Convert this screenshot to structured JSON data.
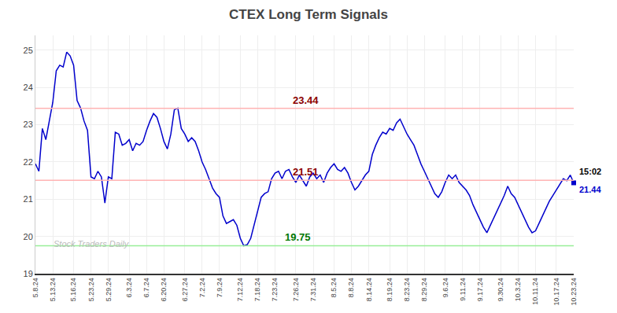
{
  "chart_data": {
    "type": "line",
    "title": "CTEX Long Term Signals",
    "color": "#0000cc",
    "ylim": [
      19.0,
      25.4
    ],
    "yticks": [
      19,
      20,
      21,
      22,
      23,
      24,
      25
    ],
    "grid": true,
    "categories": [
      "5.8.24",
      null,
      null,
      null,
      null,
      "5.13.24",
      null,
      null,
      null,
      null,
      null,
      "5.16.24",
      null,
      null,
      null,
      null,
      "5.23.24",
      null,
      null,
      null,
      null,
      "5.29.24",
      null,
      null,
      null,
      null,
      null,
      "6.3.24",
      null,
      null,
      null,
      null,
      "6.7.24",
      null,
      null,
      null,
      null,
      "6.20.24",
      null,
      null,
      null,
      null,
      null,
      "6.27.24",
      null,
      null,
      null,
      null,
      "7.2.24",
      null,
      null,
      null,
      null,
      "7.9.24",
      null,
      null,
      null,
      null,
      null,
      "7.12.24",
      null,
      null,
      null,
      null,
      "7.18.24",
      null,
      null,
      null,
      null,
      "7.23.24",
      null,
      null,
      null,
      null,
      null,
      "7.26.24",
      null,
      null,
      null,
      null,
      "7.31.24",
      null,
      null,
      null,
      null,
      null,
      "8.5.24",
      null,
      null,
      null,
      null,
      "8.8.24",
      null,
      null,
      null,
      null,
      "8.14.24",
      null,
      null,
      null,
      null,
      null,
      "8.19.24",
      null,
      null,
      null,
      null,
      "8.23.24",
      null,
      null,
      null,
      null,
      "8.29.24",
      null,
      null,
      null,
      null,
      null,
      "9.6.24",
      null,
      null,
      null,
      null,
      "9.11.24",
      null,
      null,
      null,
      null,
      "9.17.24",
      null,
      null,
      null,
      null,
      null,
      "9.30.24",
      null,
      null,
      null,
      null,
      "10.3.24",
      null,
      null,
      null,
      null,
      "10.11.24",
      null,
      null,
      null,
      null,
      null,
      "10.17.24",
      null,
      null,
      null,
      null,
      "10.23.24"
    ],
    "values": [
      21.95,
      21.75,
      22.9,
      22.6,
      23.1,
      23.6,
      24.45,
      24.6,
      24.55,
      24.95,
      24.85,
      24.6,
      23.65,
      23.45,
      23.1,
      22.85,
      21.6,
      21.55,
      21.75,
      21.6,
      20.9,
      21.6,
      21.55,
      22.8,
      22.75,
      22.45,
      22.5,
      22.6,
      22.3,
      22.5,
      22.45,
      22.55,
      22.85,
      23.1,
      23.3,
      23.2,
      22.9,
      22.55,
      22.35,
      22.75,
      23.4,
      23.45,
      22.9,
      22.75,
      22.55,
      22.65,
      22.55,
      22.3,
      22.0,
      21.8,
      21.55,
      21.3,
      21.15,
      21.05,
      20.55,
      20.35,
      20.4,
      20.45,
      20.3,
      19.95,
      19.75,
      19.78,
      19.95,
      20.3,
      20.65,
      21.05,
      21.15,
      21.2,
      21.55,
      21.7,
      21.75,
      21.55,
      21.75,
      21.8,
      21.6,
      21.45,
      21.65,
      21.5,
      21.35,
      21.6,
      21.7,
      21.55,
      21.65,
      21.45,
      21.7,
      21.85,
      21.95,
      21.8,
      21.75,
      21.85,
      21.7,
      21.45,
      21.25,
      21.35,
      21.5,
      21.65,
      21.75,
      22.2,
      22.45,
      22.65,
      22.8,
      22.75,
      22.9,
      22.85,
      23.05,
      23.15,
      22.95,
      22.75,
      22.6,
      22.45,
      22.2,
      21.95,
      21.75,
      21.55,
      21.35,
      21.15,
      21.05,
      21.2,
      21.45,
      21.65,
      21.55,
      21.65,
      21.45,
      21.35,
      21.25,
      21.1,
      20.85,
      20.65,
      20.45,
      20.25,
      20.1,
      20.3,
      20.5,
      20.7,
      20.9,
      21.1,
      21.35,
      21.15,
      21.05,
      20.85,
      20.65,
      20.45,
      20.25,
      20.1,
      20.15,
      20.35,
      20.55,
      20.75,
      20.95,
      21.1,
      21.25,
      21.4,
      21.55,
      21.5,
      21.65,
      21.44
    ],
    "reference_lines": [
      {
        "value": 23.44,
        "color": "#ffb3b3"
      },
      {
        "value": 21.51,
        "color": "#ffb3b3"
      },
      {
        "value": 19.75,
        "color": "#99ee99"
      }
    ],
    "annotations": [
      {
        "text": "23.44",
        "y": 23.44,
        "color": "#8b0000"
      },
      {
        "text": "21.51",
        "y": 21.51,
        "color": "#8b0000"
      },
      {
        "text": "19.75",
        "y": 19.75,
        "color": "#007700"
      }
    ],
    "end_labels": [
      {
        "text": "15:02",
        "color": "#000000"
      },
      {
        "text": "21.44",
        "color": "#0000cc"
      }
    ],
    "watermark": {
      "text": "Stock Traders Daily",
      "color": "#bbbbbb"
    }
  }
}
